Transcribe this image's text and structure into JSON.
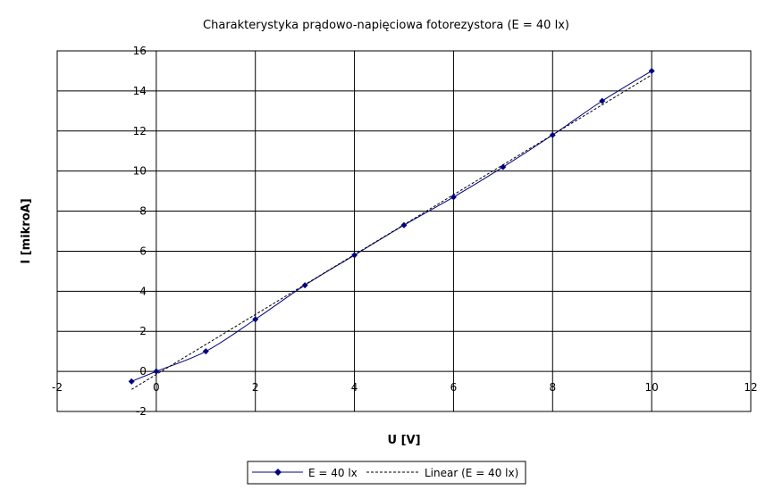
{
  "chart_data": {
    "type": "scatter",
    "title": "Charakterystyka prądowo-napięciowa fotorezystora (E = 40 lx)",
    "xlabel": "U [V]",
    "ylabel": "I [mikroA]",
    "xlim": [
      -2,
      12
    ],
    "ylim": [
      -2,
      16
    ],
    "xticks": [
      -2,
      0,
      2,
      4,
      6,
      8,
      10,
      12
    ],
    "yticks": [
      -2,
      0,
      2,
      4,
      6,
      8,
      10,
      12,
      14,
      16
    ],
    "grid": true,
    "legend_position": "bottom",
    "series": [
      {
        "name": "E = 40 lx",
        "style": "line-with-markers",
        "color": "#000080",
        "x": [
          -0.5,
          0,
          1,
          2,
          3,
          4,
          5,
          6,
          7,
          8,
          9,
          10
        ],
        "y": [
          -0.5,
          0,
          1.0,
          2.6,
          4.3,
          5.8,
          7.3,
          8.7,
          10.2,
          11.8,
          13.5,
          15.0
        ]
      },
      {
        "name": "Linear (E = 40 lx)",
        "style": "dashed",
        "color": "#000000",
        "x": [
          -0.5,
          10
        ],
        "y": [
          -0.9,
          14.8
        ]
      }
    ]
  }
}
